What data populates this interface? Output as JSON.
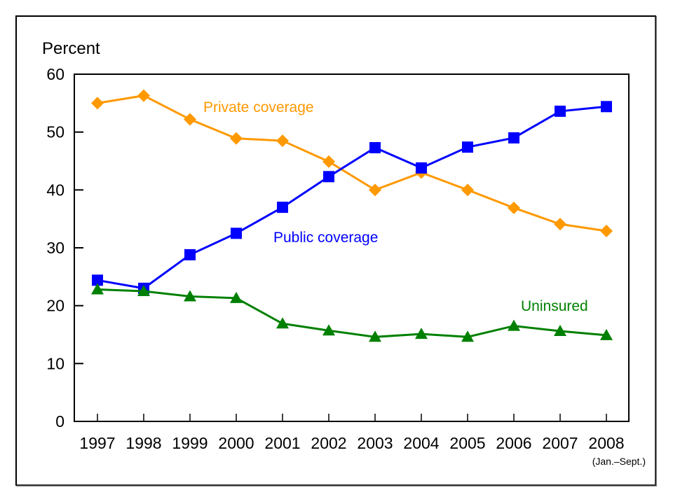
{
  "chart_data": {
    "type": "line",
    "title": "",
    "ylabel": "Percent",
    "xlabel": "",
    "ylim": [
      0,
      60
    ],
    "yticks": [
      0,
      10,
      20,
      30,
      40,
      50,
      60
    ],
    "grid": false,
    "categories": [
      "1997",
      "1998",
      "1999",
      "2000",
      "2001",
      "2002",
      "2003",
      "2004",
      "2005",
      "2006",
      "2007",
      "2008"
    ],
    "x_note": "(Jan.–Sept.)",
    "series": [
      {
        "name": "Private coverage",
        "label": "Private coverage",
        "color": "#FF9900",
        "marker": "diamond",
        "values": [
          55.0,
          56.3,
          52.2,
          48.9,
          48.5,
          44.9,
          40.0,
          43.0,
          40.0,
          36.9,
          34.1,
          32.9
        ]
      },
      {
        "name": "Public coverage",
        "label": "Public coverage",
        "color": "#0000FF",
        "marker": "square",
        "values": [
          24.4,
          23.0,
          28.8,
          32.5,
          37.0,
          42.3,
          47.3,
          43.8,
          47.4,
          49.0,
          53.6,
          54.4
        ]
      },
      {
        "name": "Uninsured",
        "label": "Uninsured",
        "color": "#008000",
        "marker": "triangle",
        "values": [
          22.8,
          22.5,
          21.6,
          21.3,
          16.9,
          15.7,
          14.6,
          15.1,
          14.6,
          16.5,
          15.6,
          14.9
        ]
      }
    ]
  }
}
